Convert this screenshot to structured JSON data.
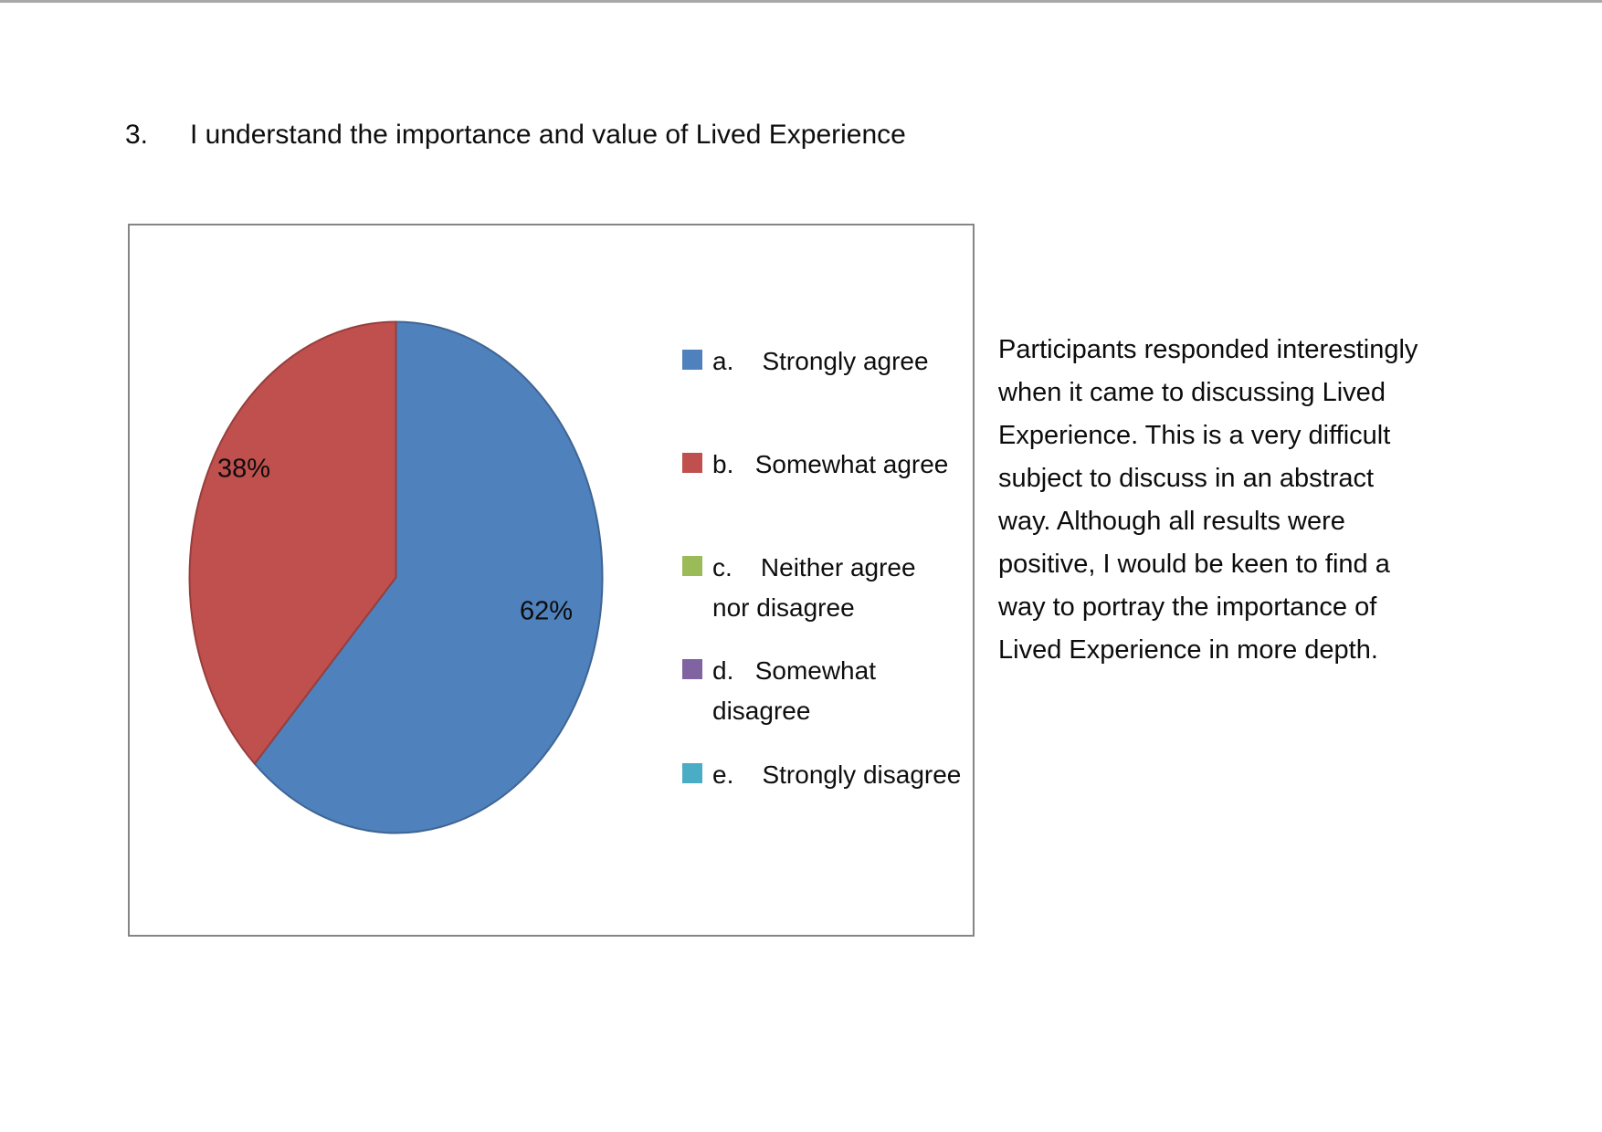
{
  "title": {
    "number": "3.",
    "text": "I understand the importance and value of Lived Experience"
  },
  "chart_data": {
    "type": "pie",
    "title": "3. I understand the importance and value of Lived Experience",
    "categories": [
      "Strongly agree",
      "Somewhat agree",
      "Neither agree nor disagree",
      "Somewhat disagree",
      "Strongly disagree"
    ],
    "option_letters": [
      "a",
      "b",
      "c",
      "d",
      "e"
    ],
    "values": [
      62,
      38,
      0,
      0,
      0
    ],
    "value_unit": "percent",
    "data_labels": [
      "62%",
      "38%"
    ],
    "colors": [
      "#4F81BD",
      "#C0504D",
      "#9BBB59",
      "#8064A2",
      "#4BACC6"
    ],
    "legend_position": "right",
    "legend_display": [
      "a.    Strongly agree",
      "b.   Somewhat agree",
      "c.    Neither agree\nnor disagree",
      "d.   Somewhat\ndisagree",
      "e.    Strongly disagree"
    ]
  },
  "commentary": {
    "text": "Participants responded interestingly\nwhen it came to discussing Lived\nExperience. This is a very difficult\nsubject to discuss in an abstract\nway. Although all results were\npositive, I would be keen to find a\nway to portray the importance of\nLived Experience in more depth."
  }
}
